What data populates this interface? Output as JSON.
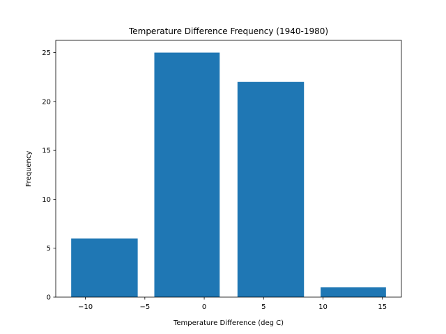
{
  "chart_data": {
    "type": "bar",
    "title": "Temperature Difference Frequency (1940-1980)",
    "xlabel": "Temperature Difference (deg C)",
    "ylabel": "Frequency",
    "bars": [
      {
        "x_start": -11.2,
        "x_end": -5.6,
        "value": 6
      },
      {
        "x_start": -4.2,
        "x_end": 1.3,
        "value": 25
      },
      {
        "x_start": 2.8,
        "x_end": 8.4,
        "value": 22
      },
      {
        "x_start": 9.8,
        "x_end": 15.3,
        "value": 1
      }
    ],
    "xlim": [
      -12.5,
      16.6
    ],
    "ylim": [
      0,
      26.25
    ],
    "xticks": [
      -10,
      -5,
      0,
      5,
      10,
      15
    ],
    "xtick_labels": [
      "−10",
      "−5",
      "0",
      "5",
      "10",
      "15"
    ],
    "yticks": [
      0,
      5,
      10,
      15,
      20,
      25
    ],
    "ytick_labels": [
      "0",
      "5",
      "10",
      "15",
      "20",
      "25"
    ],
    "bar_color": "#1f77b4",
    "grid": false,
    "legend": "none"
  }
}
